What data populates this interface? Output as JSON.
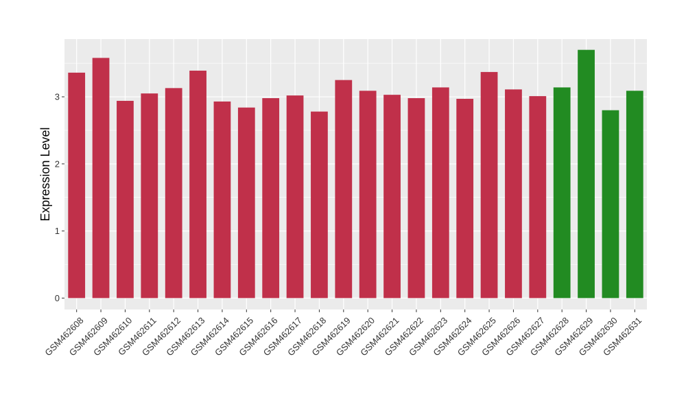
{
  "chart_data": {
    "type": "bar",
    "title": "",
    "xlabel": "",
    "ylabel": "Expression Level",
    "ylim": [
      -0.17,
      3.86
    ],
    "yticks": [
      0,
      1,
      2,
      3
    ],
    "grid": true,
    "legend": "none",
    "categories": [
      "GSM462608",
      "GSM462609",
      "GSM462610",
      "GSM462611",
      "GSM462612",
      "GSM462613",
      "GSM462614",
      "GSM462615",
      "GSM462616",
      "GSM462617",
      "GSM462618",
      "GSM462619",
      "GSM462620",
      "GSM462621",
      "GSM462622",
      "GSM462623",
      "GSM462624",
      "GSM462625",
      "GSM462626",
      "GSM462627",
      "GSM462628",
      "GSM462629",
      "GSM462630",
      "GSM462631"
    ],
    "values": [
      3.36,
      3.58,
      2.94,
      3.05,
      3.13,
      3.39,
      2.93,
      2.84,
      2.98,
      3.02,
      2.78,
      3.25,
      3.09,
      3.03,
      2.98,
      3.14,
      2.97,
      3.37,
      3.11,
      3.01,
      3.14,
      3.7,
      2.8,
      3.09
    ],
    "bar_colors": [
      "#c0304a",
      "#c0304a",
      "#c0304a",
      "#c0304a",
      "#c0304a",
      "#c0304a",
      "#c0304a",
      "#c0304a",
      "#c0304a",
      "#c0304a",
      "#c0304a",
      "#c0304a",
      "#c0304a",
      "#c0304a",
      "#c0304a",
      "#c0304a",
      "#c0304a",
      "#c0304a",
      "#c0304a",
      "#c0304a",
      "#228b22",
      "#228b22",
      "#228b22",
      "#228b22"
    ],
    "panel_background": "#ebebeb",
    "grid_color": "#ffffff"
  }
}
